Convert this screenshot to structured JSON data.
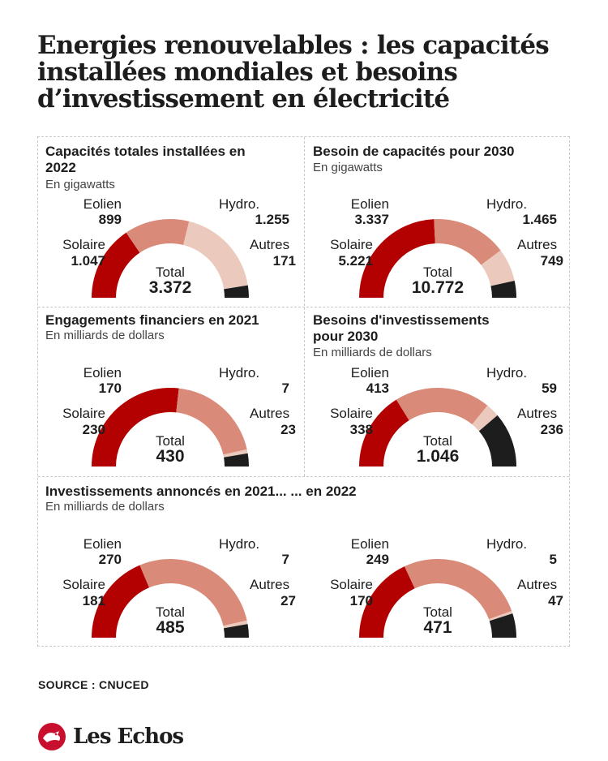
{
  "title": "Energies renouvelables : les capacités installées mondiales et besoins d’investissement en électricité",
  "source": "SOURCE : CNUCED",
  "brand": "Les Echos",
  "colors": {
    "solaire": "#b30000",
    "eolien": "#d98a78",
    "hydro": "#ecc9bd",
    "autres": "#1d1d1d"
  },
  "labels": {
    "solaire": "Solaire",
    "eolien": "Eolien",
    "hydro": "Hydro.",
    "autres": "Autres",
    "total": "Total"
  },
  "panel_titles": [
    {
      "title": "Capacités totales installées en 2022",
      "subtitle": "En gigawatts"
    },
    {
      "title": "Besoin de capacités pour 2030",
      "subtitle": "En gigawatts"
    },
    {
      "title": "Engagements financiers en 2021",
      "subtitle": "En milliards de dollars"
    },
    {
      "title": "Besoins d'investissements pour 2030",
      "subtitle": "En milliards de dollars"
    },
    {
      "title": "Investissements annoncés en 2021... ... en 2022",
      "subtitle": "En milliards de dollars"
    }
  ],
  "chart_data": [
    {
      "type": "pie",
      "subtype": "half-donut",
      "title": "Capacités totales installées en 2022",
      "subtitle": "En gigawatts",
      "categories": [
        "Solaire",
        "Eolien",
        "Hydro.",
        "Autres"
      ],
      "values": [
        1047,
        899,
        1255,
        171
      ],
      "display": [
        "1.047",
        "899",
        "1.255",
        "171"
      ],
      "total": "3.372"
    },
    {
      "type": "pie",
      "subtype": "half-donut",
      "title": "Besoin de capacités pour 2030",
      "subtitle": "En gigawatts",
      "categories": [
        "Solaire",
        "Eolien",
        "Hydro.",
        "Autres"
      ],
      "values": [
        5221,
        3337,
        1465,
        749
      ],
      "display": [
        "5.221",
        "3.337",
        "1.465",
        "749"
      ],
      "total": "10.772"
    },
    {
      "type": "pie",
      "subtype": "half-donut",
      "title": "Engagements financiers en 2021",
      "subtitle": "En milliards de dollars",
      "categories": [
        "Solaire",
        "Eolien",
        "Hydro.",
        "Autres"
      ],
      "values": [
        230,
        170,
        7,
        23
      ],
      "display": [
        "230",
        "170",
        "7",
        "23"
      ],
      "total": "430"
    },
    {
      "type": "pie",
      "subtype": "half-donut",
      "title": "Besoins d'investissements pour 2030",
      "subtitle": "En milliards de dollars",
      "categories": [
        "Solaire",
        "Eolien",
        "Hydro.",
        "Autres"
      ],
      "values": [
        338,
        413,
        59,
        236
      ],
      "display": [
        "338",
        "413",
        "59",
        "236"
      ],
      "total": "1.046"
    },
    {
      "type": "pie",
      "subtype": "half-donut",
      "title": "Investissements annoncés en 2021...",
      "subtitle": "En milliards de dollars",
      "categories": [
        "Solaire",
        "Eolien",
        "Hydro.",
        "Autres"
      ],
      "values": [
        181,
        270,
        7,
        27
      ],
      "display": [
        "181",
        "270",
        "7",
        "27"
      ],
      "total": "485"
    },
    {
      "type": "pie",
      "subtype": "half-donut",
      "title": "... en 2022",
      "subtitle": "En milliards de dollars",
      "categories": [
        "Solaire",
        "Eolien",
        "Hydro.",
        "Autres"
      ],
      "values": [
        170,
        249,
        5,
        47
      ],
      "display": [
        "170",
        "249",
        "5",
        "47"
      ],
      "total": "471"
    }
  ]
}
